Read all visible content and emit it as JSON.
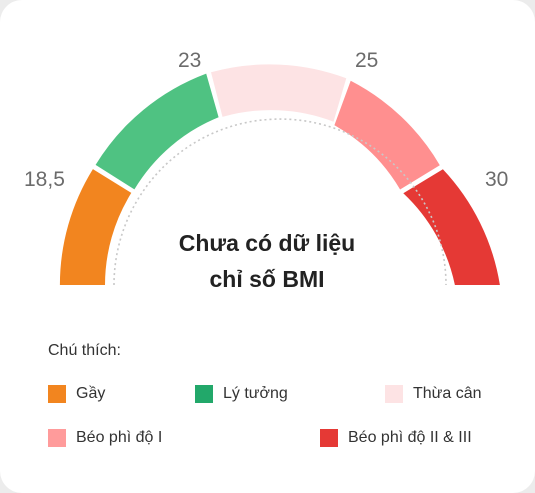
{
  "gauge": {
    "ticks": [
      "18,5",
      "23",
      "25",
      "30"
    ],
    "message_line1": "Chưa có dữ liệu",
    "message_line2": "chỉ số BMI",
    "colors": {
      "underweight": "#f2851f",
      "ideal": "#4fc282",
      "overweight": "#fde3e4",
      "obese1": "#ff8f8f",
      "obese23": "#e53935"
    }
  },
  "legend": {
    "title": "Chú thích:",
    "items": [
      {
        "label": "Gầy",
        "color": "#f2851f"
      },
      {
        "label": "Lý tưởng",
        "color": "#22a86a"
      },
      {
        "label": "Thừa cân",
        "color": "#fde3e4"
      },
      {
        "label": "Béo phì độ I",
        "color": "#ff9b9b"
      },
      {
        "label": "Béo phì độ II & III",
        "color": "#e53935"
      }
    ]
  }
}
